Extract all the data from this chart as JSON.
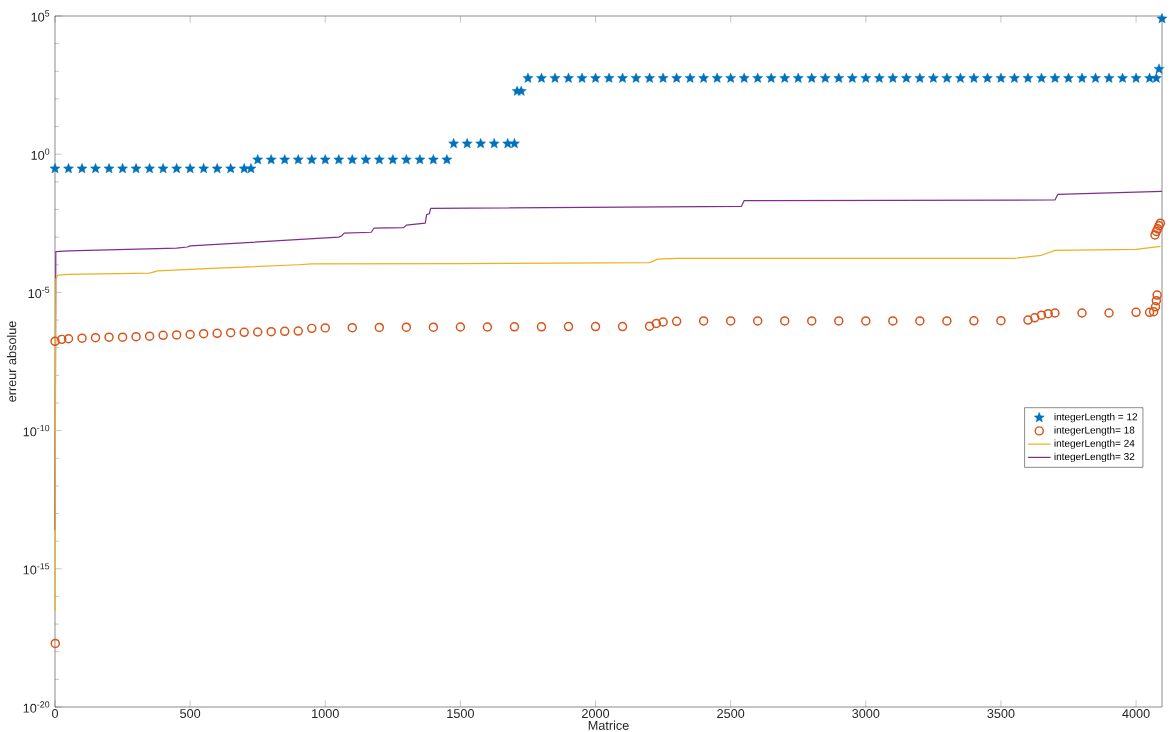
{
  "chart_data": {
    "type": "scatter",
    "xlabel": "Matrice",
    "ylabel": "erreur absolue",
    "log": "y",
    "legend": "right",
    "xlim": [
      0,
      4096
    ],
    "ylim": [
      1e-20,
      100000.0
    ],
    "xticks": [
      0,
      500,
      1000,
      1500,
      2000,
      2500,
      3000,
      3500,
      4000
    ],
    "yticks": [
      {
        "value": 1e-20,
        "label": "10$^{-20}$"
      },
      {
        "value": 1e-19,
        "label": null
      },
      {
        "value": 1e-18,
        "label": null
      },
      {
        "value": 1e-17,
        "label": null
      },
      {
        "value": 1e-16,
        "label": null
      },
      {
        "value": 1e-15,
        "label": "10$^{-15}$"
      },
      {
        "value": 1e-14,
        "label": null
      },
      {
        "value": 1e-13,
        "label": null
      },
      {
        "value": 1e-12,
        "label": null
      },
      {
        "value": 1e-11,
        "label": null
      },
      {
        "value": 1e-10,
        "label": "10$^{-10}$"
      },
      {
        "value": 1e-09,
        "label": null
      },
      {
        "value": 1e-08,
        "label": null
      },
      {
        "value": 1e-07,
        "label": null
      },
      {
        "value": 1e-06,
        "label": null
      },
      {
        "value": 1e-05,
        "label": "10$^{-5}$"
      },
      {
        "value": 0.0001,
        "label": null
      },
      {
        "value": 0.001,
        "label": null
      },
      {
        "value": 0.01,
        "label": null
      },
      {
        "value": 0.1,
        "label": null
      },
      {
        "value": 1,
        "label": "10$^{0}$"
      },
      {
        "value": 10,
        "label": null
      },
      {
        "value": 100,
        "label": null
      },
      {
        "value": 1000,
        "label": null
      },
      {
        "value": 10000,
        "label": null
      },
      {
        "value": 100000,
        "label": "10$^{5}$"
      }
    ],
    "series": [
      {
        "name": "integerLength = 12",
        "marker": "star",
        "color": "#0072bd",
        "x": [
          0,
          50,
          100,
          150,
          200,
          250,
          300,
          350,
          400,
          450,
          500,
          550,
          600,
          650,
          700,
          725,
          750,
          800,
          850,
          900,
          950,
          1000,
          1050,
          1100,
          1150,
          1200,
          1250,
          1300,
          1350,
          1400,
          1450,
          1475,
          1525,
          1575,
          1625,
          1675,
          1700,
          1710,
          1725,
          1750,
          1800,
          1850,
          1900,
          1950,
          2000,
          2050,
          2100,
          2150,
          2200,
          2250,
          2300,
          2350,
          2400,
          2450,
          2500,
          2550,
          2600,
          2650,
          2700,
          2750,
          2800,
          2850,
          2900,
          2950,
          3000,
          3050,
          3100,
          3150,
          3200,
          3250,
          3300,
          3350,
          3400,
          3450,
          3500,
          3550,
          3600,
          3650,
          3700,
          3750,
          3800,
          3850,
          3900,
          3950,
          4000,
          4050,
          4075,
          4085,
          4096
        ],
        "values": [
          0.3,
          0.3,
          0.3,
          0.3,
          0.3,
          0.3,
          0.3,
          0.3,
          0.3,
          0.3,
          0.3,
          0.3,
          0.3,
          0.3,
          0.3,
          0.3,
          0.63,
          0.63,
          0.63,
          0.63,
          0.63,
          0.63,
          0.63,
          0.63,
          0.63,
          0.63,
          0.63,
          0.63,
          0.63,
          0.63,
          0.63,
          2.4,
          2.4,
          2.4,
          2.4,
          2.4,
          2.4,
          190,
          190,
          560,
          560,
          560,
          560,
          560,
          560,
          560,
          560,
          560,
          560,
          560,
          560,
          560,
          560,
          560,
          560,
          560,
          560,
          560,
          560,
          560,
          560,
          560,
          560,
          560,
          560,
          560,
          560,
          560,
          560,
          560,
          560,
          560,
          560,
          560,
          560,
          560,
          560,
          560,
          560,
          560,
          560,
          560,
          560,
          560,
          560,
          560,
          560,
          1200,
          80000
        ]
      },
      {
        "name": "integerLength= 18",
        "marker": "circle",
        "color": "#d95319",
        "x": [
          1,
          0,
          25,
          50,
          100,
          150,
          200,
          250,
          300,
          350,
          400,
          450,
          500,
          550,
          600,
          650,
          700,
          750,
          800,
          850,
          900,
          950,
          1000,
          1100,
          1200,
          1300,
          1400,
          1500,
          1600,
          1700,
          1800,
          1900,
          2000,
          2100,
          2200,
          2225,
          2250,
          2300,
          2400,
          2500,
          2600,
          2700,
          2800,
          2900,
          3000,
          3100,
          3200,
          3300,
          3400,
          3500,
          3600,
          3625,
          3650,
          3675,
          3700,
          3800,
          3900,
          4000,
          4050,
          4065,
          4072,
          4075,
          4078,
          4070,
          4075,
          4080,
          4085,
          4090
        ],
        "values": [
          2e-18,
          1.7e-07,
          2e-07,
          2.1e-07,
          2.2e-07,
          2.3e-07,
          2.4e-07,
          2.4e-07,
          2.5e-07,
          2.6e-07,
          2.8e-07,
          2.9e-07,
          3e-07,
          3.2e-07,
          3.3e-07,
          3.5e-07,
          3.6e-07,
          3.7e-07,
          3.8e-07,
          3.9e-07,
          4e-07,
          5e-07,
          5.2e-07,
          5.3e-07,
          5.4e-07,
          5.5e-07,
          5.5e-07,
          5.6e-07,
          5.6e-07,
          5.7e-07,
          5.7e-07,
          5.8e-07,
          5.8e-07,
          5.8e-07,
          6e-07,
          7.5e-07,
          8.5e-07,
          9e-07,
          9.3e-07,
          9.3e-07,
          9.3e-07,
          9.3e-07,
          9.3e-07,
          9.3e-07,
          9.3e-07,
          9.3e-07,
          9.3e-07,
          9.3e-07,
          9.4e-07,
          9.5e-07,
          1e-06,
          1.2e-06,
          1.5e-06,
          1.7e-06,
          1.8e-06,
          1.8e-06,
          1.8e-06,
          1.9e-06,
          1.9e-06,
          2e-06,
          3e-06,
          5e-06,
          8e-06,
          0.0012,
          0.0016,
          0.002,
          0.0026,
          0.0032
        ]
      },
      {
        "name": "integerLength= 24",
        "type": "line",
        "marker": "none",
        "color": "#edb120",
        "x": [
          0,
          1,
          2,
          3,
          10,
          50,
          350,
          380,
          600,
          900,
          950,
          1500,
          2200,
          2230,
          2300,
          3550,
          3650,
          3700,
          4000,
          4090
        ],
        "values": [
          3e-17,
          1e-12,
          1e-08,
          3e-05,
          4.2e-05,
          4.5e-05,
          5e-05,
          6e-05,
          7.5e-05,
          0.0001,
          0.000107,
          0.00011,
          0.00012,
          0.00016,
          0.00017,
          0.00017,
          0.00022,
          0.00033,
          0.00036,
          0.00046
        ]
      },
      {
        "name": "integerLength= 32",
        "type": "line",
        "marker": "none",
        "color": "#7e2f8e",
        "x": [
          0,
          3,
          50,
          450,
          490,
          500,
          1050,
          1060,
          1070,
          1170,
          1180,
          1290,
          1300,
          1370,
          1375,
          1385,
          1390,
          2540,
          2550,
          3700,
          3710,
          4096
        ],
        "values": [
          2.5e-14,
          0.0003,
          0.00032,
          0.0004,
          0.00044,
          0.00048,
          0.001,
          0.0011,
          0.0014,
          0.0015,
          0.0021,
          0.0022,
          0.0027,
          0.0032,
          0.0065,
          0.007,
          0.011,
          0.013,
          0.021,
          0.022,
          0.035,
          0.045
        ]
      }
    ]
  }
}
